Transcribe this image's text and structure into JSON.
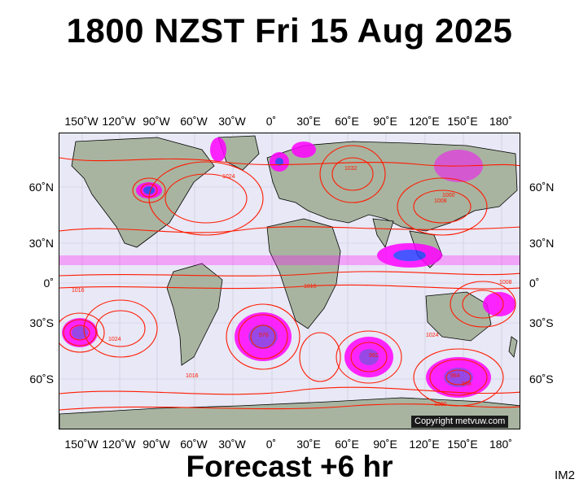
{
  "title": "1800 NZST Fri 15 Aug 2025",
  "forecast_label": "Forecast +6 hr",
  "product_code": "IM2",
  "copyright": "Copyright metvuw.com",
  "lon_labels": [
    "150˚W",
    "120˚W",
    "90˚W",
    "60˚W",
    "30˚W",
    "0˚",
    "30˚E",
    "60˚E",
    "90˚E",
    "120˚E",
    "150˚E",
    "180˚"
  ],
  "lat_labels": [
    "60˚N",
    "30˚N",
    "0˚",
    "30˚S",
    "60˚S"
  ],
  "pressure_labels": [
    "1016",
    "1024",
    "1008",
    "1000",
    "992",
    "984",
    "976",
    "968",
    "1032"
  ],
  "colors": {
    "isobar": "#ff1a00",
    "land": "#a8b4a0",
    "ocean": "#e8e8f6",
    "precip_magenta": "#ff00ff",
    "precip_purple": "#8a2be2",
    "precip_blue": "#2a3cff",
    "coastline": "#000000"
  }
}
